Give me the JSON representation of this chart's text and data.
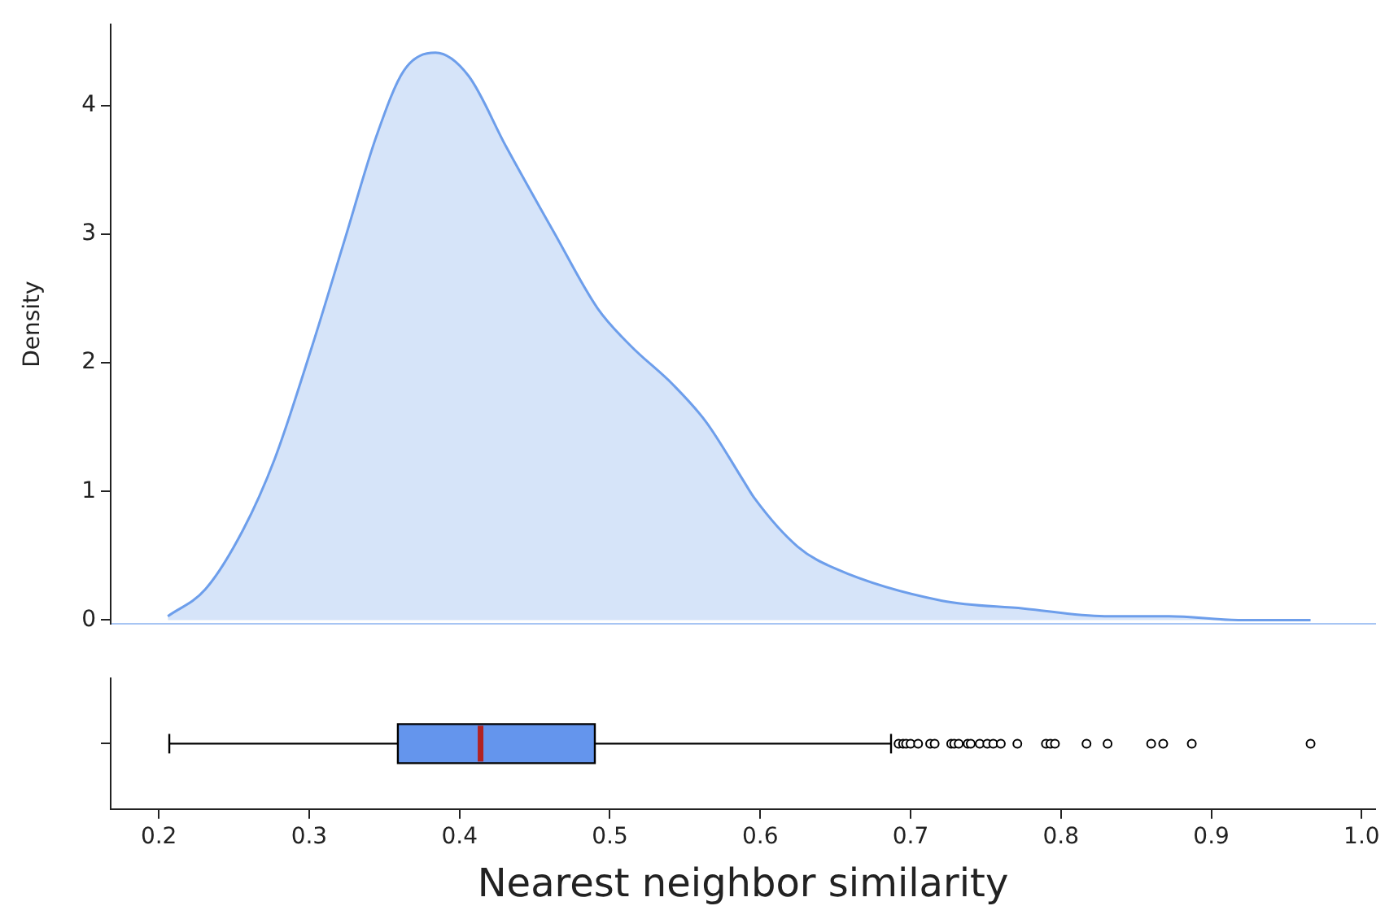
{
  "chart_data": [
    {
      "type": "area",
      "ylabel": "Density",
      "tick_labels": "y",
      "xlim": [
        0.168,
        1.009
      ],
      "ylim": [
        -0.03,
        4.63
      ],
      "yticks": [
        0,
        1,
        2,
        3,
        4
      ],
      "grid": false,
      "legend": false,
      "series": [
        {
          "color": "#6d9eeb",
          "x": [
            0.206,
            0.231,
            0.256,
            0.277,
            0.302,
            0.324,
            0.345,
            0.363,
            0.384,
            0.406,
            0.431,
            0.463,
            0.492,
            0.514,
            0.542,
            0.564,
            0.589,
            0.596,
            0.625,
            0.65,
            0.721,
            0.775,
            0.829,
            0.872,
            0.918,
            0.966
          ],
          "values": [
            0.03,
            0.24,
            0.7,
            1.25,
            2.13,
            2.97,
            3.77,
            4.27,
            4.41,
            4.23,
            3.68,
            3.01,
            2.42,
            2.13,
            1.83,
            1.54,
            1.08,
            0.95,
            0.57,
            0.4,
            0.15,
            0.09,
            0.03,
            0.03,
            0,
            0
          ]
        }
      ]
    },
    {
      "type": "box",
      "orientation": "horizontal",
      "xlabel": "Nearest neighbor similarity",
      "tick_labels": "x",
      "xlim": [
        0.168,
        1.009
      ],
      "xticks": [
        {
          "value": 0.2,
          "label": "0.2"
        },
        {
          "value": 0.3,
          "label": "0.3"
        },
        {
          "value": 0.4,
          "label": "0.4"
        },
        {
          "value": 0.5,
          "label": "0.5"
        },
        {
          "value": 0.6,
          "label": "0.6"
        },
        {
          "value": 0.7,
          "label": "0.7"
        },
        {
          "value": 0.8,
          "label": "0.8"
        },
        {
          "value": 0.9,
          "label": "0.9"
        },
        {
          "value": 1.0,
          "label": "1.0"
        }
      ],
      "grid": false,
      "legend": false,
      "categories": [
        null
      ],
      "series": [
        {
          "color": "#6495ed",
          "boxes": [
            {
              "low": 0.207,
              "q1": 0.359,
              "median": 0.414,
              "q3": 0.49,
              "high": 0.687,
              "outliers": [
                0.692,
                0.695,
                0.697,
                0.7,
                0.705,
                0.713,
                0.716,
                0.727,
                0.729,
                0.732,
                0.738,
                0.74,
                0.746,
                0.751,
                0.755,
                0.76,
                0.771,
                0.79,
                0.793,
                0.796,
                0.817,
                0.831,
                0.86,
                0.868,
                0.887,
                0.966
              ]
            }
          ]
        }
      ]
    }
  ]
}
